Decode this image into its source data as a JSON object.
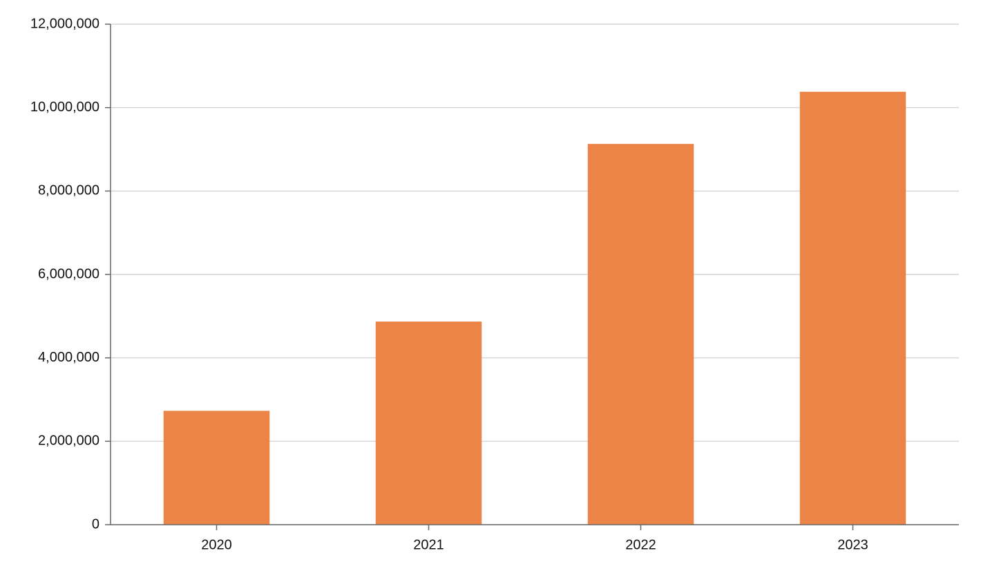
{
  "chart_data": {
    "type": "bar",
    "categories": [
      "2020",
      "2021",
      "2022",
      "2023"
    ],
    "values": [
      2730000,
      4870000,
      9130000,
      10380000
    ],
    "color": "#eb8446",
    "ylim": [
      0,
      12000000
    ],
    "yticks": [
      0,
      {
        "value": 2000000,
        "label": "2,000,000"
      },
      {
        "value": 4000000,
        "label": "4,000,000"
      },
      {
        "value": 6000000,
        "label": "6,000,000"
      },
      {
        "value": 8000000,
        "label": "8,000,000"
      },
      {
        "value": 10000000,
        "label": "10,000,000"
      },
      {
        "value": 12000000,
        "label": "12,000,000"
      }
    ],
    "grid": true
  }
}
